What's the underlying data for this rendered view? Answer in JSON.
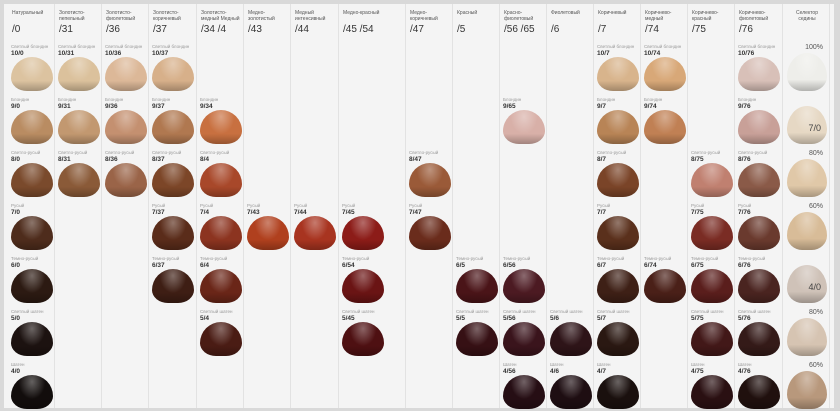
{
  "levels": {
    "10": "Светлый блондин",
    "9": "Блондин",
    "8": "Светло-русый",
    "7": "Русый",
    "6": "Темно-русый",
    "5": "Светлый шатен",
    "4": "Шатен"
  },
  "columns": [
    {
      "name": "Натуральный",
      "code": "/0",
      "cells": [
        [
          "10/0",
          "#dcc3a0"
        ],
        [
          "9/0",
          "#b98c62"
        ],
        [
          "8/0",
          "#7a4a2c"
        ],
        [
          "7/0",
          "#4e2c1c"
        ],
        [
          "6/0",
          "#2c1a12"
        ],
        [
          "5/0",
          "#1c1210"
        ],
        [
          "4/0",
          "#120d0c"
        ]
      ]
    },
    {
      "name": "Золотисто-пепельный",
      "code": "/31",
      "cells": [
        [
          "10/31",
          "#dbc19c"
        ],
        [
          "9/31",
          "#c29870"
        ],
        [
          "8/31",
          "#8a5a38"
        ],
        null,
        null,
        null,
        null
      ]
    },
    {
      "name": "Золотисто-фиолетовый",
      "code": "/36",
      "cells": [
        [
          "10/36",
          "#dcb898"
        ],
        [
          "9/36",
          "#c49070"
        ],
        [
          "8/36",
          "#9a6448"
        ],
        null,
        null,
        null,
        null
      ]
    },
    {
      "name": "Золотисто-коричневый",
      "code": "/37",
      "cells": [
        [
          "10/37",
          "#d7b08a"
        ],
        [
          "9/37",
          "#b07850"
        ],
        [
          "8/37",
          "#7c4628"
        ],
        [
          "7/37",
          "#5a2c1a"
        ],
        [
          "6/37",
          "#3e1e14"
        ],
        null,
        null
      ]
    },
    {
      "name": "Золотисто-медный Медный",
      "code": "/34 /4",
      "cells": [
        null,
        [
          "9/34",
          "#c87040"
        ],
        [
          "8/4",
          "#a8482a"
        ],
        [
          "7/4",
          "#8c3420"
        ],
        [
          "6/4",
          "#6a2618"
        ],
        [
          "5/4",
          "#4a1c14"
        ],
        null
      ]
    },
    {
      "name": "Медно-золотистый",
      "code": "/43",
      "cells": [
        null,
        null,
        null,
        [
          "7/43",
          "#b0401e"
        ],
        null,
        null,
        null
      ]
    },
    {
      "name": "Медный интенсивный",
      "code": "/44",
      "cells": [
        null,
        null,
        null,
        [
          "7/44",
          "#a83420"
        ],
        null,
        null,
        null
      ]
    },
    {
      "name": "Медно-красный",
      "code": "/45 /54",
      "cells": [
        null,
        null,
        null,
        [
          "7/45",
          "#8c1c18"
        ],
        [
          "6/54",
          "#6a1414"
        ],
        [
          "5/45",
          "#4e1012"
        ],
        null
      ]
    },
    {
      "name": "Медно-коричневый",
      "code": "/47",
      "cells": [
        null,
        null,
        [
          "8/47",
          "#9a5a38"
        ],
        [
          "7/47",
          "#6a2c1c"
        ],
        null,
        null,
        null
      ]
    },
    {
      "name": "Красный",
      "code": "/5",
      "cells": [
        null,
        null,
        null,
        null,
        [
          "6/5",
          "#4a1418"
        ],
        [
          "5/5",
          "#361014"
        ],
        null
      ]
    },
    {
      "name": "Красно-фиолетовый",
      "code": "/56 /65",
      "cells": [
        null,
        [
          "9/65",
          "#d8b0a8"
        ],
        null,
        null,
        [
          "6/56",
          "#4c1a22"
        ],
        [
          "5/56",
          "#3a141c"
        ],
        [
          "4/56",
          "#260e14"
        ]
      ]
    },
    {
      "name": "Фиолетовый",
      "code": "/6",
      "cells": [
        null,
        null,
        null,
        null,
        null,
        [
          "5/6",
          "#2e1418"
        ],
        [
          "4/6",
          "#1e0e12"
        ]
      ]
    },
    {
      "name": "Коричневый",
      "code": "/7",
      "cells": [
        [
          "10/7",
          "#d8b48c"
        ],
        [
          "9/7",
          "#b88456"
        ],
        [
          "8/7",
          "#7a4428"
        ],
        [
          "7/7",
          "#5a301c"
        ],
        [
          "6/7",
          "#3e2016"
        ],
        [
          "5/7",
          "#2a1812"
        ],
        [
          "4/7",
          "#1a100e"
        ]
      ]
    },
    {
      "name": "Коричнево-медный",
      "code": "/74",
      "cells": [
        [
          "10/74",
          "#d8a878"
        ],
        [
          "9/74",
          "#c08054"
        ],
        null,
        null,
        [
          "6/74",
          "#4a2018"
        ],
        null,
        null
      ]
    },
    {
      "name": "Коричнево-красный",
      "code": "/75",
      "cells": [
        null,
        null,
        [
          "8/75",
          "#c08070"
        ],
        [
          "7/75",
          "#7a2c24"
        ],
        [
          "6/75",
          "#5a1e1c"
        ],
        [
          "5/75",
          "#421818"
        ],
        [
          "4/75",
          "#2a1012"
        ]
      ]
    },
    {
      "name": "Коричнево-фиолетовый",
      "code": "/76",
      "cells": [
        [
          "10/76",
          "#d8c0b8"
        ],
        [
          "9/76",
          "#c8a098"
        ],
        [
          "8/76",
          "#8a5a48"
        ],
        [
          "7/76",
          "#6a3a2e"
        ],
        [
          "6/76",
          "#4a2420"
        ],
        [
          "5/76",
          "#341a18"
        ],
        [
          "4/76",
          "#20100e"
        ]
      ]
    },
    {
      "name": "Селектор седины",
      "code": "",
      "cells": [
        [
          "100%",
          "#eeeeea"
        ],
        [
          "7/0",
          "#e6d8c4"
        ],
        [
          "80%",
          "#e0c8a8"
        ],
        [
          "60%",
          "#d8bc98"
        ],
        [
          "4/0",
          "#cfc2b8"
        ],
        [
          "80%",
          "#d6c4b2"
        ],
        [
          "60%",
          "#b8987c"
        ]
      ]
    }
  ]
}
